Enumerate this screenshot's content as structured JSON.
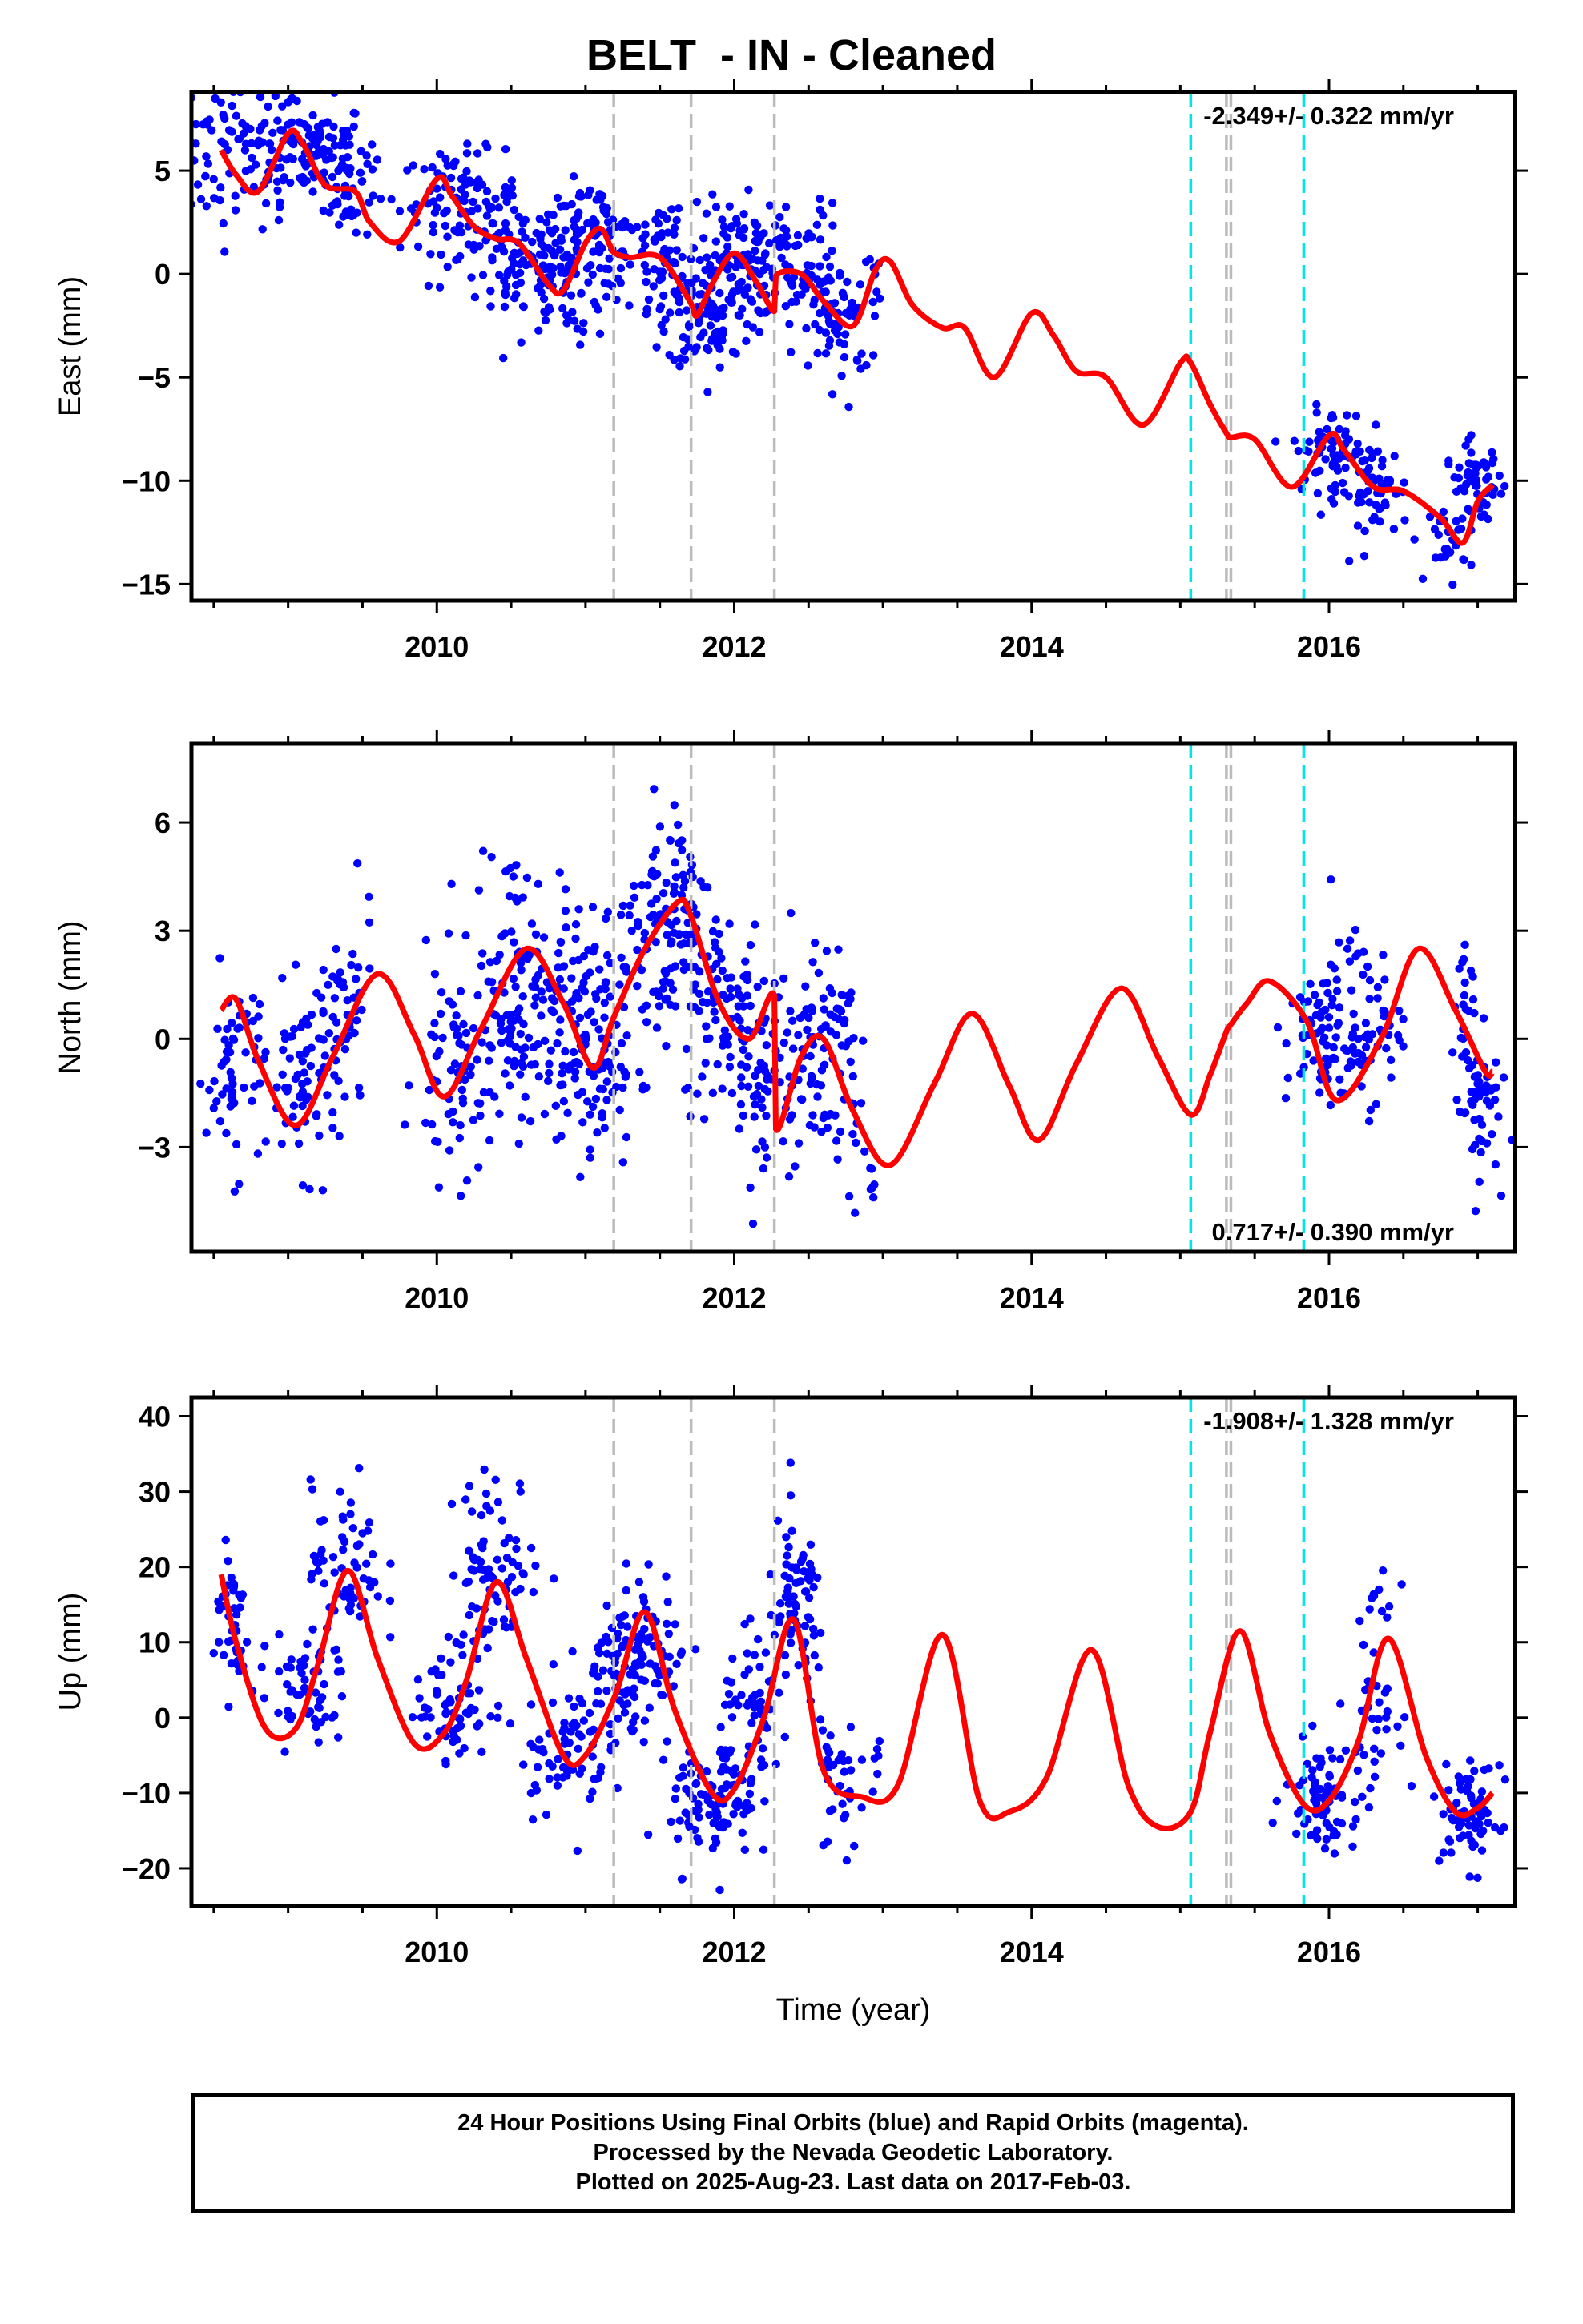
{
  "title": "BELT  - IN - Cleaned",
  "footer": {
    "line1": "24 Hour Positions Using Final Orbits (blue) and Rapid Orbits (magenta).",
    "line2": "Processed by the Nevada Geodetic Laboratory.",
    "line3": "Plotted on 2025-Aug-23. Last data on 2017-Feb-03."
  },
  "colors": {
    "points": "#0000ff",
    "model": "#ff0000",
    "offset_gray": "#bbbbbb",
    "offset_cyan": "#00e5e5"
  },
  "offsets": {
    "gray": [
      2011.19,
      2011.71,
      2012.27,
      2015.31,
      2015.34
    ],
    "cyan": [
      2015.07,
      2015.83
    ]
  },
  "chart_data": [
    {
      "type": "scatter",
      "name": "east",
      "ylabel": "East (mm)",
      "xlabel": "",
      "xlim": [
        2008.35,
        2017.25
      ],
      "ylim": [
        -15.8,
        8.8
      ],
      "xticks": [
        2010,
        2012,
        2014,
        2016
      ],
      "yticks": [
        5,
        0,
        -5,
        -10,
        -15
      ],
      "ytick_labels": [
        "5",
        "0",
        "−5",
        "−10",
        "−15"
      ],
      "rate_text": "-2.349+/- 0.322 mm/yr",
      "rate_position": "top-right",
      "model": {
        "x": [
          2008.55,
          2008.65,
          2008.8,
          2009.0,
          2009.1,
          2009.25,
          2009.45,
          2009.55,
          2009.75,
          2010.0,
          2010.1,
          2010.25,
          2010.4,
          2010.55,
          2010.75,
          2010.85,
          2011.0,
          2011.1,
          2011.17,
          2011.2,
          2011.3,
          2011.5,
          2011.7,
          2011.75,
          2011.85,
          2012.0,
          2012.15,
          2012.27,
          2012.28,
          2012.45,
          2012.6,
          2012.8,
          2012.95,
          2013.05,
          2013.2,
          2013.4,
          2013.55,
          2013.75,
          2014.0,
          2014.15,
          2014.3,
          2014.5,
          2014.75,
          2015.0,
          2015.07,
          2015.2,
          2015.31,
          2015.34,
          2015.5,
          2015.75,
          2016.0,
          2016.1,
          2016.3,
          2016.5,
          2016.75,
          2016.9,
          2017.0,
          2017.1
        ],
        "y": [
          6.0,
          4.8,
          4.0,
          6.8,
          6.3,
          4.3,
          4.0,
          2.5,
          1.6,
          4.6,
          3.8,
          2.3,
          1.7,
          1.5,
          -0.5,
          -0.8,
          1.5,
          2.2,
          1.3,
          1.0,
          0.8,
          0.8,
          -1.3,
          -2.0,
          -0.5,
          1.0,
          -0.4,
          -1.8,
          -0.1,
          0.0,
          -1.3,
          -2.5,
          0.2,
          0.6,
          -1.5,
          -2.6,
          -2.6,
          -5.0,
          -1.9,
          -3.0,
          -4.7,
          -5.0,
          -7.3,
          -4.3,
          -4.3,
          -6.3,
          -7.7,
          -7.9,
          -8.0,
          -10.3,
          -7.8,
          -8.5,
          -10.3,
          -10.5,
          -11.8,
          -13.0,
          -11.0,
          -10.2
        ]
      },
      "points": [
        {
          "x": 2008.65,
          "y": 5.8,
          "sx": 0.25,
          "sy": 1.8,
          "n": 90
        },
        {
          "x": 2009.15,
          "y": 6.0,
          "sx": 0.2,
          "sy": 1.2,
          "n": 110
        },
        {
          "x": 2009.4,
          "y": 4.0,
          "sx": 0.08,
          "sy": 1.3,
          "n": 40
        },
        {
          "x": 2010.15,
          "y": 3.5,
          "sx": 0.2,
          "sy": 1.2,
          "n": 90
        },
        {
          "x": 2010.55,
          "y": 0.8,
          "sx": 0.2,
          "sy": 1.6,
          "n": 90
        },
        {
          "x": 2010.9,
          "y": 0.0,
          "sx": 0.2,
          "sy": 1.6,
          "n": 80
        },
        {
          "x": 2011.05,
          "y": 1.8,
          "sx": 0.15,
          "sy": 1.3,
          "n": 70
        },
        {
          "x": 2011.55,
          "y": 0.2,
          "sx": 0.15,
          "sy": 1.8,
          "n": 70
        },
        {
          "x": 2011.85,
          "y": -2.0,
          "sx": 0.15,
          "sy": 1.3,
          "n": 90
        },
        {
          "x": 2012.0,
          "y": 0.8,
          "sx": 0.15,
          "sy": 1.4,
          "n": 80
        },
        {
          "x": 2012.45,
          "y": 0.0,
          "sx": 0.15,
          "sy": 1.7,
          "n": 80
        },
        {
          "x": 2012.72,
          "y": -2.5,
          "sx": 0.1,
          "sy": 1.5,
          "n": 50
        },
        {
          "x": 2012.95,
          "y": -0.5,
          "sx": 0.02,
          "sy": 1.0,
          "n": 8
        },
        {
          "x": 2016.0,
          "y": -8.5,
          "sx": 0.12,
          "sy": 1.0,
          "n": 60
        },
        {
          "x": 2016.3,
          "y": -10.5,
          "sx": 0.12,
          "sy": 1.2,
          "n": 60
        },
        {
          "x": 2016.8,
          "y": -13.0,
          "sx": 0.06,
          "sy": 1.0,
          "n": 20
        },
        {
          "x": 2016.98,
          "y": -10.2,
          "sx": 0.1,
          "sy": 1.0,
          "n": 60
        }
      ]
    },
    {
      "type": "scatter",
      "name": "north",
      "ylabel": "North (mm)",
      "xlabel": "",
      "xlim": [
        2008.35,
        2017.25
      ],
      "ylim": [
        -5.9,
        8.2
      ],
      "xticks": [
        2010,
        2012,
        2014,
        2016
      ],
      "yticks": [
        6,
        3,
        0,
        -3
      ],
      "ytick_labels": [
        "6",
        "3",
        "0",
        "−3"
      ],
      "rate_text": "0.717+/- 0.390 mm/yr",
      "rate_position": "bottom-right",
      "model": {
        "x": [
          2008.55,
          2008.65,
          2008.8,
          2009.05,
          2009.3,
          2009.6,
          2009.85,
          2010.05,
          2010.3,
          2010.6,
          2010.85,
          2011.05,
          2011.19,
          2011.4,
          2011.62,
          2011.71,
          2011.9,
          2012.1,
          2012.27,
          2012.28,
          2012.45,
          2012.6,
          2012.8,
          2013.05,
          2013.35,
          2013.6,
          2013.85,
          2014.05,
          2014.3,
          2014.6,
          2014.85,
          2015.07,
          2015.2,
          2015.31,
          2015.34,
          2015.45,
          2015.6,
          2015.85,
          2016.05,
          2016.35,
          2016.6,
          2016.85,
          2017.05,
          2017.1
        ],
        "y": [
          0.8,
          1.1,
          -0.6,
          -2.4,
          -0.5,
          1.8,
          0.1,
          -1.6,
          0.3,
          2.5,
          1.0,
          -0.8,
          0.6,
          2.5,
          3.8,
          3.4,
          1.0,
          0.0,
          1.2,
          -2.5,
          -0.5,
          0.0,
          -2.0,
          -3.5,
          -1.2,
          0.7,
          -1.3,
          -2.8,
          -0.7,
          1.4,
          -0.5,
          -2.1,
          -1.0,
          0.2,
          0.4,
          1.0,
          1.6,
          0.5,
          -1.7,
          0.0,
          2.5,
          0.8,
          -0.9,
          -0.9
        ]
      },
      "points": [
        {
          "x": 2008.65,
          "y": -0.9,
          "sx": 0.1,
          "sy": 1.4,
          "n": 60
        },
        {
          "x": 2009.1,
          "y": -1.2,
          "sx": 0.12,
          "sy": 1.2,
          "n": 60
        },
        {
          "x": 2009.38,
          "y": 0.5,
          "sx": 0.1,
          "sy": 1.5,
          "n": 50
        },
        {
          "x": 2010.15,
          "y": -1.0,
          "sx": 0.15,
          "sy": 1.5,
          "n": 80
        },
        {
          "x": 2010.55,
          "y": 2.0,
          "sx": 0.15,
          "sy": 1.8,
          "n": 90
        },
        {
          "x": 2010.85,
          "y": 0.5,
          "sx": 0.15,
          "sy": 1.5,
          "n": 80
        },
        {
          "x": 2011.05,
          "y": -0.8,
          "sx": 0.15,
          "sy": 1.4,
          "n": 70
        },
        {
          "x": 2011.45,
          "y": 2.5,
          "sx": 0.12,
          "sy": 1.6,
          "n": 70
        },
        {
          "x": 2011.65,
          "y": 3.8,
          "sx": 0.1,
          "sy": 1.6,
          "n": 60
        },
        {
          "x": 2011.95,
          "y": 0.8,
          "sx": 0.15,
          "sy": 1.4,
          "n": 80
        },
        {
          "x": 2012.2,
          "y": -0.8,
          "sx": 0.12,
          "sy": 1.6,
          "n": 60
        },
        {
          "x": 2012.55,
          "y": 0.0,
          "sx": 0.12,
          "sy": 1.6,
          "n": 70
        },
        {
          "x": 2012.75,
          "y": -1.5,
          "sx": 0.06,
          "sy": 1.5,
          "n": 25
        },
        {
          "x": 2012.95,
          "y": -4.1,
          "sx": 0.02,
          "sy": 0.4,
          "n": 6
        },
        {
          "x": 2015.95,
          "y": 0.0,
          "sx": 0.12,
          "sy": 1.0,
          "n": 70
        },
        {
          "x": 2016.25,
          "y": 0.5,
          "sx": 0.12,
          "sy": 1.1,
          "n": 60
        },
        {
          "x": 2016.9,
          "y": 1.0,
          "sx": 0.05,
          "sy": 1.0,
          "n": 20
        },
        {
          "x": 2017.0,
          "y": -1.8,
          "sx": 0.07,
          "sy": 1.0,
          "n": 50
        }
      ]
    },
    {
      "type": "scatter",
      "name": "up",
      "ylabel": "Up (mm)",
      "xlabel": "Time (year)",
      "xlim": [
        2008.35,
        2017.25
      ],
      "ylim": [
        -25,
        42.5
      ],
      "xticks": [
        2010,
        2012,
        2014,
        2016
      ],
      "yticks": [
        40,
        30,
        20,
        10,
        0,
        -10,
        -20
      ],
      "ytick_labels": [
        "40",
        "30",
        "20",
        "10",
        "0",
        "−10",
        "−20"
      ],
      "rate_text": "-1.908+/- 1.328 mm/yr",
      "rate_position": "top-right",
      "model": {
        "x": [
          2008.55,
          2008.65,
          2008.85,
          2009.05,
          2009.2,
          2009.4,
          2009.6,
          2009.85,
          2010.05,
          2010.2,
          2010.4,
          2010.6,
          2010.85,
          2011.0,
          2011.2,
          2011.4,
          2011.6,
          2011.85,
          2012.0,
          2012.2,
          2012.4,
          2012.6,
          2012.85,
          2013.1,
          2013.4,
          2013.65,
          2013.85,
          2014.1,
          2014.4,
          2014.65,
          2014.85,
          2015.07,
          2015.2,
          2015.4,
          2015.6,
          2015.83,
          2016.0,
          2016.2,
          2016.4,
          2016.65,
          2016.85,
          2017.0,
          2017.1
        ],
        "y": [
          19,
          10,
          -1.5,
          -1.5,
          7,
          19.5,
          8,
          -3.5,
          -2,
          5,
          18,
          8,
          -5,
          -5,
          3,
          14,
          1,
          -10,
          -9.5,
          0,
          13,
          -7,
          -10.5,
          -9,
          11,
          -11,
          -12.5,
          -8,
          9,
          -9,
          -14.5,
          -12.5,
          -2,
          11.5,
          -2,
          -11.5,
          -11,
          -3,
          10.5,
          -5,
          -12.5,
          -12,
          -10
        ]
      },
      "points": [
        {
          "x": 2008.62,
          "y": 13.0,
          "sx": 0.06,
          "sy": 5.0,
          "n": 40
        },
        {
          "x": 2009.1,
          "y": 4.0,
          "sx": 0.15,
          "sy": 4.0,
          "n": 60
        },
        {
          "x": 2009.4,
          "y": 20.0,
          "sx": 0.12,
          "sy": 5.5,
          "n": 60
        },
        {
          "x": 2010.1,
          "y": 2.0,
          "sx": 0.12,
          "sy": 4.0,
          "n": 60
        },
        {
          "x": 2010.4,
          "y": 20.0,
          "sx": 0.15,
          "sy": 6.0,
          "n": 80
        },
        {
          "x": 2010.85,
          "y": -4.0,
          "sx": 0.15,
          "sy": 4.5,
          "n": 70
        },
        {
          "x": 2011.2,
          "y": 6.0,
          "sx": 0.12,
          "sy": 5.0,
          "n": 60
        },
        {
          "x": 2011.45,
          "y": 10.0,
          "sx": 0.12,
          "sy": 5.0,
          "n": 60
        },
        {
          "x": 2011.85,
          "y": -12.0,
          "sx": 0.15,
          "sy": 4.0,
          "n": 90
        },
        {
          "x": 2012.15,
          "y": 0.0,
          "sx": 0.12,
          "sy": 5.0,
          "n": 60
        },
        {
          "x": 2012.42,
          "y": 14.0,
          "sx": 0.1,
          "sy": 6.0,
          "n": 70
        },
        {
          "x": 2012.7,
          "y": -8.0,
          "sx": 0.07,
          "sy": 6.0,
          "n": 35
        },
        {
          "x": 2012.95,
          "y": -7.0,
          "sx": 0.02,
          "sy": 2.0,
          "n": 6
        },
        {
          "x": 2015.95,
          "y": -10.0,
          "sx": 0.12,
          "sy": 3.5,
          "n": 70
        },
        {
          "x": 2016.3,
          "y": 3.0,
          "sx": 0.08,
          "sy": 7.0,
          "n": 45
        },
        {
          "x": 2016.95,
          "y": -13.0,
          "sx": 0.1,
          "sy": 3.5,
          "n": 70
        }
      ]
    }
  ]
}
